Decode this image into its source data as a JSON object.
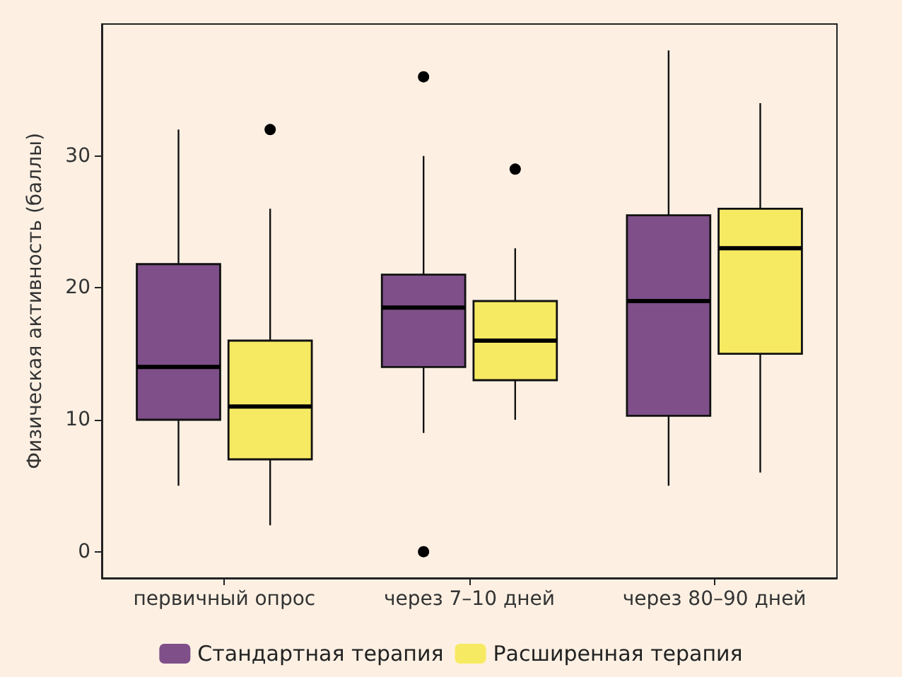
{
  "chart_data": {
    "type": "box",
    "ylabel": "Физическая активность (баллы)",
    "categories": [
      "первичный опрос",
      "через 7–10 дней",
      "через 80–90 дней"
    ],
    "ylim": [
      -2,
      40
    ],
    "yticks": [
      0,
      10,
      20,
      30
    ],
    "grid": false,
    "legend": "bottom",
    "series": [
      {
        "name": "Стандартная терапия",
        "color": "#7f4f8a",
        "boxes": [
          {
            "low": 5,
            "q1": 10,
            "median": 14,
            "q3": 21.8,
            "high": 32
          },
          {
            "low": 9,
            "q1": 14,
            "median": 18.5,
            "q3": 21,
            "high": 30,
            "outliers": [
              36,
              0
            ]
          },
          {
            "low": 5,
            "q1": 10.3,
            "median": 19,
            "q3": 25.5,
            "high": 38
          }
        ]
      },
      {
        "name": "Расширенная терапия",
        "color": "#f7ea63",
        "boxes": [
          {
            "low": 2,
            "q1": 7,
            "median": 11,
            "q3": 16,
            "high": 26,
            "outliers": [
              32
            ]
          },
          {
            "low": 10,
            "q1": 13,
            "median": 16,
            "q3": 19,
            "high": 23,
            "outliers": [
              29
            ]
          },
          {
            "low": 6,
            "q1": 15,
            "median": 23,
            "q3": 26,
            "high": 34
          }
        ]
      }
    ]
  }
}
